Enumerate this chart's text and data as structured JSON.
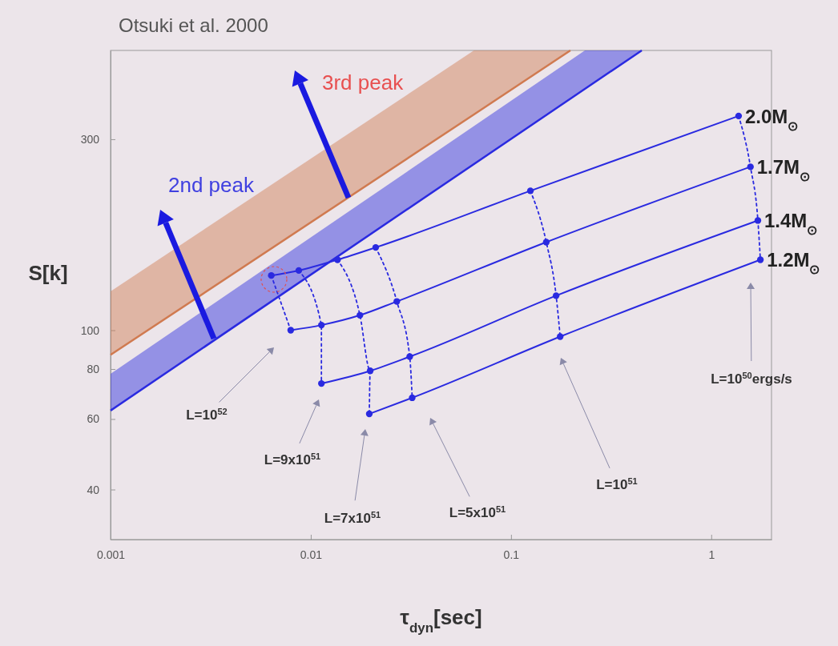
{
  "chart_data": {
    "type": "line",
    "title": "Otsuki et al. 2000",
    "xlabel": "τ$_{dyn}$[sec]",
    "ylabel": "S[k]",
    "log": "xy",
    "xlim": [
      0.001,
      2
    ],
    "ylim": [
      30,
      500
    ],
    "xticks": [
      0.001,
      0.01,
      0.1,
      1
    ],
    "yticks": [
      40,
      60,
      80,
      100,
      300
    ],
    "grid": false,
    "series": [
      {
        "color": "#d07a50",
        "marker": "none",
        "line_style": "solid",
        "x": [
          0.001,
          0.0653,
          0.198
        ],
        "values": [
          86.8,
          346,
          500
        ],
        "lower": [
          86.8,
          346,
          500
        ],
        "upper": [
          125,
          500,
          500
        ]
      },
      {
        "color": "#2a2ae0",
        "marker": "none",
        "line_style": "solid",
        "x": [
          0.001,
          0.234,
          0.45
        ],
        "values": [
          63,
          401,
          500
        ],
        "lower": [
          63,
          401,
          500
        ],
        "upper": [
          77.8,
          500,
          500
        ]
      },
      {
        "name": "2.0M$_{⊙}$",
        "color": "#2a2ae0",
        "marker": "circle",
        "line_style": "solid",
        "x": [
          0.00635,
          0.00871,
          0.0136,
          0.0211,
          0.125,
          1.37
        ],
        "values": [
          137,
          141,
          150,
          161,
          223,
          343
        ]
      },
      {
        "name": "1.7M$_{⊙}$",
        "color": "#2a2ae0",
        "marker": "circle",
        "line_style": "solid",
        "x": [
          0.00794,
          0.0113,
          0.0176,
          0.0269,
          0.15,
          1.57
        ],
        "values": [
          100,
          103,
          109,
          118,
          166,
          256
        ]
      },
      {
        "name": "1.4M$_{⊙}$",
        "color": "#2a2ae0",
        "marker": "circle",
        "line_style": "solid",
        "x": [
          0.0113,
          0.0198,
          0.0312,
          0.168,
          1.71
        ],
        "values": [
          73.6,
          79.2,
          85.9,
          122,
          188
        ]
      },
      {
        "name": "1.2M$_{⊙}$",
        "color": "#2a2ae0",
        "marker": "circle",
        "line_style": "solid",
        "x": [
          0.0196,
          0.0321,
          0.176,
          1.76
        ],
        "values": [
          61.8,
          67.8,
          96.4,
          150
        ]
      },
      {
        "color": "#2a2ae0",
        "marker": "none",
        "line_style": "dotted",
        "x": [
          0.00635,
          0.00794
        ],
        "values": [
          137,
          100
        ]
      },
      {
        "color": "#2a2ae0",
        "marker": "none",
        "line_style": "dotted",
        "x": [
          0.00871,
          0.0113,
          0.0113
        ],
        "values": [
          141,
          103,
          73.6
        ]
      },
      {
        "color": "#2a2ae0",
        "marker": "none",
        "line_style": "dotted",
        "x": [
          0.0136,
          0.0176,
          0.0198,
          0.0196
        ],
        "values": [
          150,
          109,
          79.2,
          61.8
        ]
      },
      {
        "color": "#2a2ae0",
        "marker": "none",
        "line_style": "dotted",
        "x": [
          0.0211,
          0.0269,
          0.0312,
          0.0321
        ],
        "values": [
          161,
          118,
          85.9,
          67.8
        ]
      },
      {
        "color": "#2a2ae0",
        "marker": "none",
        "line_style": "dotted",
        "x": [
          0.125,
          0.15,
          0.168,
          0.176
        ],
        "values": [
          223,
          166,
          122,
          96.4
        ]
      },
      {
        "color": "#2a2ae0",
        "marker": "none",
        "line_style": "dotted",
        "x": [
          1.37,
          1.57,
          1.71,
          1.76
        ],
        "values": [
          343,
          256,
          188,
          150
        ]
      }
    ],
    "annotations": [
      "2nd peak",
      "3rd peak",
      "L=10$^{52}$",
      "L=9x10$^{51}$",
      "L=7x10$^{51}$",
      "L=5x10$^{51}$",
      "L=10$^{51}$",
      "L=10$^{50}$ergs/s"
    ]
  }
}
